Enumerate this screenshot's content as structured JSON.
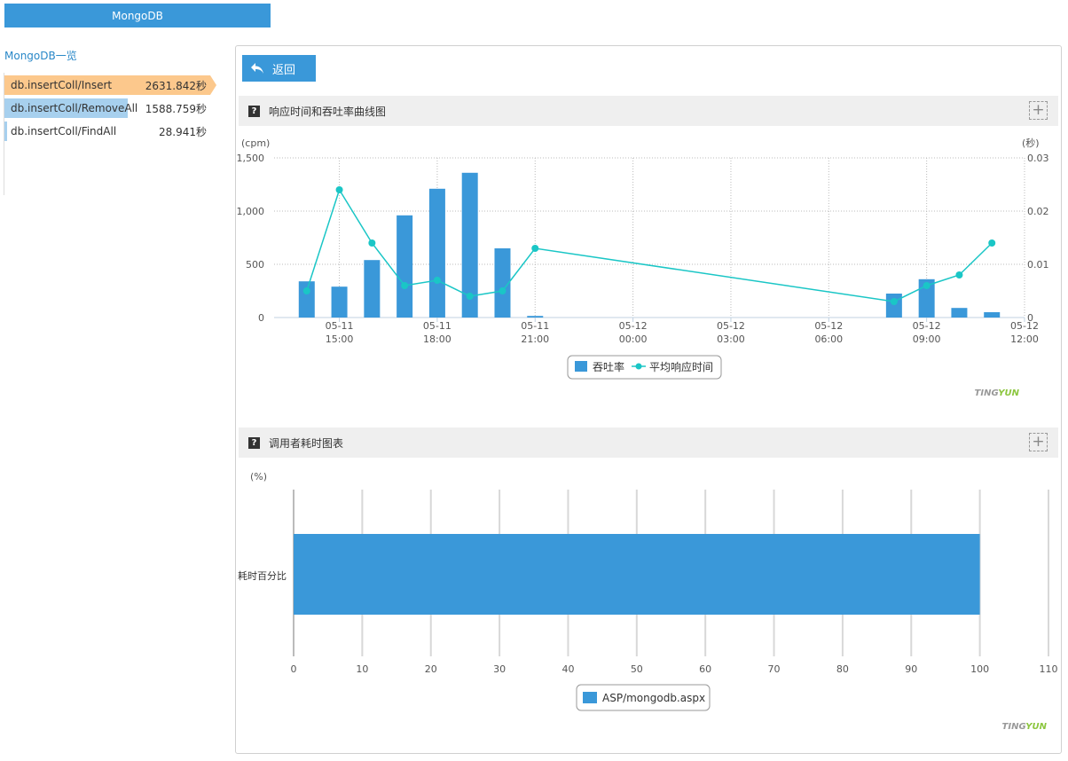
{
  "top_tab": {
    "label": "MongoDB"
  },
  "sidebar": {
    "title": "MongoDB一览",
    "items": [
      {
        "name": "db.insertColl/Insert",
        "value": "2631.842秒",
        "fraction": 1.0,
        "color": "#fcc88c"
      },
      {
        "name": "db.insertColl/RemoveAll",
        "value": "1588.759秒",
        "fraction": 0.6,
        "color": "#a7d0ee"
      },
      {
        "name": "db.insertColl/FindAll",
        "value": "28.941秒",
        "fraction": 0.012,
        "color": "#a7d0ee"
      }
    ]
  },
  "back_button": {
    "label": "返回"
  },
  "section1": {
    "title": "响应时间和吞吐率曲线图",
    "brand_a": "TING",
    "brand_b": "YUN"
  },
  "section2": {
    "title": "调用者耗时图表",
    "brand_a": "TING",
    "brand_b": "YUN"
  },
  "colors": {
    "accent": "#3a98d9",
    "line": "#1ac6c6",
    "brand_grey": "#999999",
    "brand_green": "#8cc63f"
  },
  "chart_data": [
    {
      "type": "bar+line",
      "left_unit": "(cpm)",
      "right_unit": "(秒)",
      "left_ticks": [
        "1,500",
        "1,000",
        "500",
        "0"
      ],
      "right_ticks": [
        "0.03",
        "0.02",
        "0.01",
        "0"
      ],
      "ylim_left": [
        0,
        1500
      ],
      "ylim_right": [
        0,
        0.03
      ],
      "x_tick_labels": [
        [
          "05-11",
          "15:00"
        ],
        [
          "05-11",
          "18:00"
        ],
        [
          "05-11",
          "21:00"
        ],
        [
          "05-12",
          "00:00"
        ],
        [
          "05-12",
          "03:00"
        ],
        [
          "05-12",
          "06:00"
        ],
        [
          "05-12",
          "09:00"
        ],
        [
          "05-12",
          "12:00"
        ]
      ],
      "x_hours": [
        14,
        15,
        16,
        17,
        18,
        19,
        20,
        21,
        32,
        33,
        34,
        35
      ],
      "series": [
        {
          "name": "吞吐率",
          "kind": "bar",
          "axis": "left",
          "values": [
            340,
            290,
            540,
            960,
            1210,
            1360,
            650,
            15,
            225,
            360,
            90,
            50
          ]
        },
        {
          "name": "平均响应时间",
          "kind": "line",
          "axis": "right",
          "values": [
            0.005,
            0.024,
            0.014,
            0.006,
            0.007,
            0.004,
            0.005,
            0.013,
            0.003,
            0.006,
            0.008,
            0.014
          ]
        }
      ],
      "legend": [
        "吞吐率",
        "平均响应时间"
      ],
      "grid": true
    },
    {
      "type": "hbar",
      "unit": "(%)",
      "categories": [
        "耗时百分比"
      ],
      "x_ticks": [
        "0",
        "10",
        "20",
        "30",
        "40",
        "50",
        "60",
        "70",
        "80",
        "90",
        "100",
        "110"
      ],
      "xlim": [
        0,
        110
      ],
      "series": [
        {
          "name": "ASP/mongodb.aspx",
          "values": [
            100
          ]
        }
      ],
      "legend": [
        "ASP/mongodb.aspx"
      ],
      "grid": true
    }
  ]
}
